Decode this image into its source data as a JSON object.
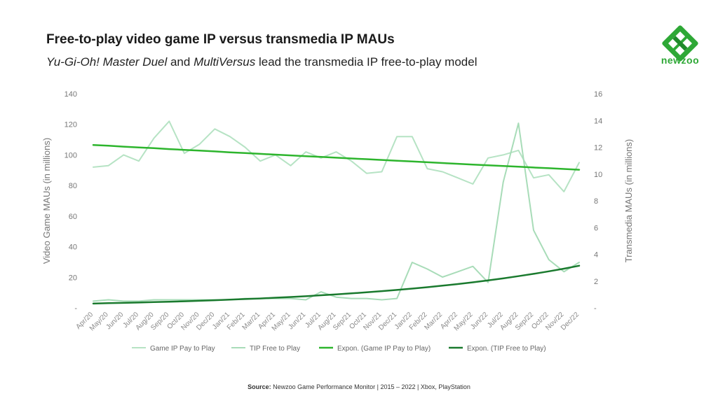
{
  "header": {
    "title": "Free-to-play video game IP versus transmedia IP MAUs",
    "subtitle_part1": "Yu-Gi-Oh! Master Duel",
    "subtitle_part2": " and ",
    "subtitle_part3": "MultiVersus",
    "subtitle_part4": " lead the transmedia IP free-to-play model"
  },
  "logo": {
    "text": "newzoo",
    "color": "#2ea836"
  },
  "footer": {
    "source_label": "Source:",
    "source_text": " Newzoo Game Performance Monitor | 2015 – 2022 | Xbox, PlayStation"
  },
  "chart_data": {
    "type": "line",
    "ylabel": "Video Game MAUs (in millions)",
    "y2label": "Transmedia MAUs (in millions)",
    "ylim": [
      0,
      140
    ],
    "y2lim": [
      0,
      16
    ],
    "yticks": [
      "-",
      "20",
      "40",
      "60",
      "80",
      "100",
      "120",
      "140"
    ],
    "y2ticks": [
      "-",
      "2",
      "4",
      "6",
      "8",
      "10",
      "12",
      "14",
      "16"
    ],
    "legend_position": "bottom",
    "grid": false,
    "categories": [
      "Apr/20",
      "May/20",
      "Jun/20",
      "Jul/20",
      "Aug/20",
      "Sep/20",
      "Oct/20",
      "Nov/20",
      "Dec/20",
      "Jan/21",
      "Feb/21",
      "Mar/21",
      "Apr/21",
      "May/21",
      "Jun/21",
      "Jul/21",
      "Aug/21",
      "Sep/21",
      "Oct/21",
      "Nov/21",
      "Dec/21",
      "Jan/22",
      "Feb/22",
      "Mar/22",
      "Apr/22",
      "May/22",
      "Jun/22",
      "Jul/22",
      "Aug/22",
      "Sep/22",
      "Oct/22",
      "Nov/22",
      "Dec/22"
    ],
    "series": [
      {
        "name": "Game IP Pay to Play",
        "axis": "left",
        "color": "#b6e3c4",
        "width": 2,
        "values": [
          92,
          93,
          100,
          96,
          111,
          122,
          101,
          107,
          117,
          112,
          105,
          96,
          100,
          93,
          102,
          98,
          102,
          96,
          88,
          89,
          112,
          112,
          91,
          89,
          85,
          81,
          98,
          100,
          103,
          85,
          87,
          76,
          95
        ]
      },
      {
        "name": "TIP Free to Play",
        "axis": "right",
        "color": "#a8dcb8",
        "width": 2,
        "values": [
          0.5,
          0.6,
          0.5,
          0.5,
          0.6,
          0.6,
          0.6,
          0.6,
          0.6,
          0.6,
          0.7,
          0.7,
          0.7,
          0.7,
          0.6,
          1.2,
          0.8,
          0.7,
          0.7,
          0.6,
          0.7,
          3.4,
          2.9,
          2.3,
          2.7,
          3.1,
          1.9,
          9.4,
          13.8,
          5.8,
          3.6,
          2.7,
          3.4
        ]
      },
      {
        "name": "Expon. (Game IP Pay to Play)",
        "axis": "left",
        "color": "#2db52d",
        "width": 2.5,
        "values": [
          106.5,
          106,
          105.4,
          104.9,
          104.4,
          103.8,
          103.3,
          102.8,
          102.3,
          101.7,
          101.2,
          100.7,
          100.2,
          99.7,
          99.2,
          98.7,
          98.2,
          97.7,
          97.2,
          96.7,
          96.2,
          95.7,
          95.2,
          94.7,
          94.2,
          93.7,
          93.2,
          92.8,
          92.3,
          91.8,
          91.3,
          90.8,
          90.3
        ]
      },
      {
        "name": "Expon. (TIP Free to Play)",
        "axis": "right",
        "color": "#1a7a2e",
        "width": 2.5,
        "values": [
          0.32,
          0.35,
          0.37,
          0.4,
          0.43,
          0.46,
          0.49,
          0.53,
          0.57,
          0.61,
          0.66,
          0.7,
          0.76,
          0.81,
          0.87,
          0.94,
          1.01,
          1.08,
          1.16,
          1.25,
          1.34,
          1.44,
          1.54,
          1.66,
          1.78,
          1.91,
          2.05,
          2.2,
          2.37,
          2.54,
          2.73,
          2.93,
          3.15
        ]
      }
    ]
  }
}
